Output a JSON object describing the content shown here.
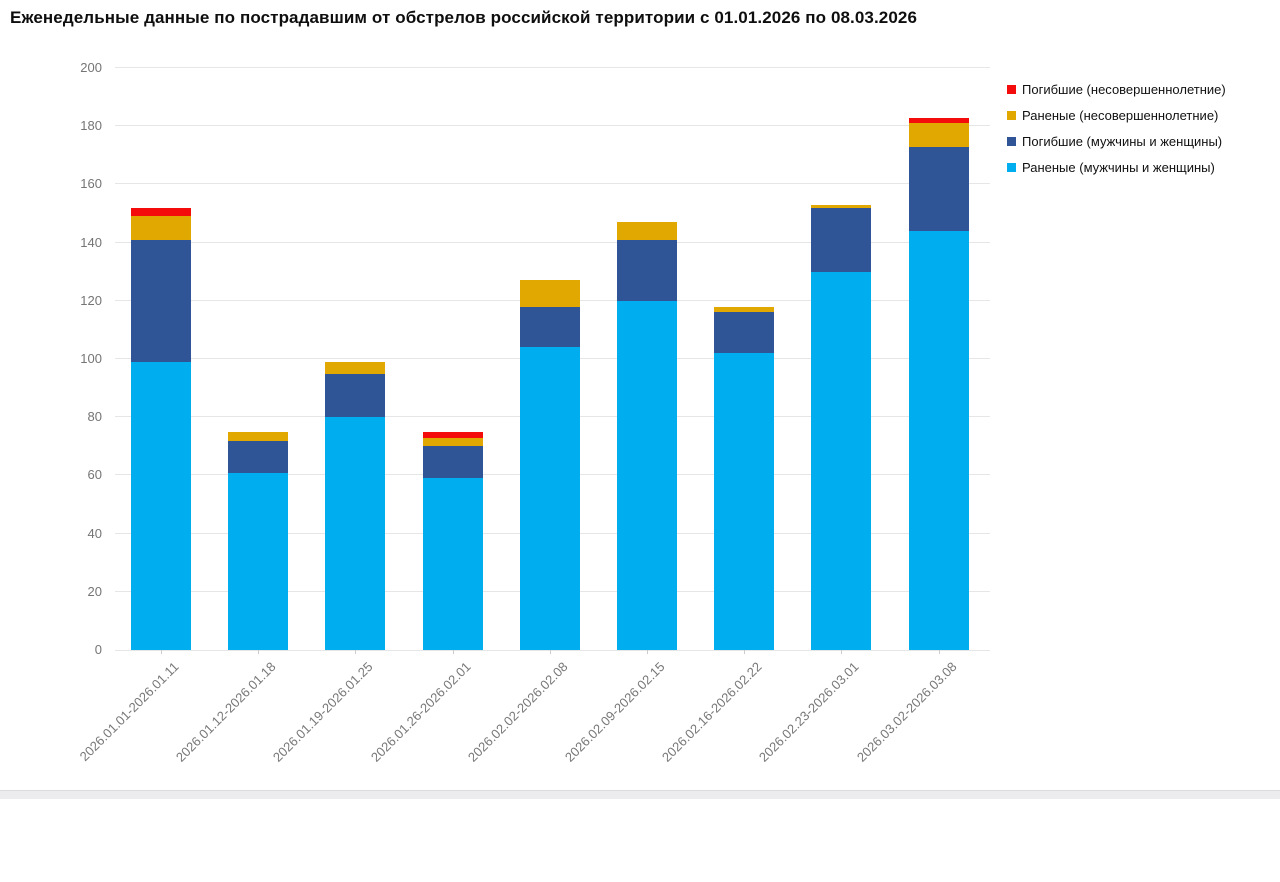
{
  "title": "Еженедельные данные по пострадавшим от обстрелов российской территории с 01.01.2026 по 08.03.2026",
  "colors": {
    "dead_minors": "#f40b0b",
    "wounded_minors": "#e0a800",
    "dead_adults": "#2f5597",
    "wounded_adults": "#00aeef",
    "grid": "#e6e6e6",
    "axis_text": "#757575"
  },
  "legend": [
    {
      "label": "Погибшие (несовершеннолетние)",
      "color": "#f40b0b"
    },
    {
      "label": "Раненые (несовершеннолетние)",
      "color": "#e0a800"
    },
    {
      "label": "Погибшие (мужчины и женщины)",
      "color": "#2f5597"
    },
    {
      "label": "Раненые (мужчины и женщины)",
      "color": "#00aeef"
    }
  ],
  "chart_data": {
    "type": "bar",
    "stacked": true,
    "title": "Еженедельные данные по пострадавшим от обстрелов российской территории с 01.01.2026 по 08.03.2026",
    "categories": [
      "2026.01.01-2026.01.11",
      "2026.01.12-2026.01.18",
      "2026.01.19-2026.01.25",
      "2026.01.26-2026.02.01",
      "2026.02.02-2026.02.08",
      "2026.02.09-2026.02.15",
      "2026.02.16-2026.02.22",
      "2026.02.23-2026.03.01",
      "2026.03.02-2026.03.08"
    ],
    "series": [
      {
        "name": "Раненые (мужчины и женщины)",
        "color": "#00aeef",
        "values": [
          99,
          61,
          80,
          59,
          104,
          120,
          102,
          130,
          144
        ]
      },
      {
        "name": "Погибшие (мужчины и женщины)",
        "color": "#2f5597",
        "values": [
          42,
          11,
          15,
          11,
          14,
          21,
          14,
          22,
          29
        ]
      },
      {
        "name": "Раненые (несовершеннолетние)",
        "color": "#e0a800",
        "values": [
          8,
          3,
          4,
          3,
          9,
          6,
          2,
          1,
          8
        ]
      },
      {
        "name": "Погибшие (несовершеннолетние)",
        "color": "#f40b0b",
        "values": [
          3,
          0,
          0,
          2,
          0,
          0,
          0,
          0,
          2
        ]
      }
    ],
    "totals": [
      152,
      75,
      99,
      75,
      127,
      147,
      118,
      153,
      183
    ],
    "xlabel": "",
    "ylabel": "",
    "ylim": [
      0,
      200
    ],
    "ytick_step": 20,
    "y_ticks": [
      0,
      20,
      40,
      60,
      80,
      100,
      120,
      140,
      160,
      180,
      200
    ],
    "grid": true,
    "legend_position": "top-right"
  }
}
